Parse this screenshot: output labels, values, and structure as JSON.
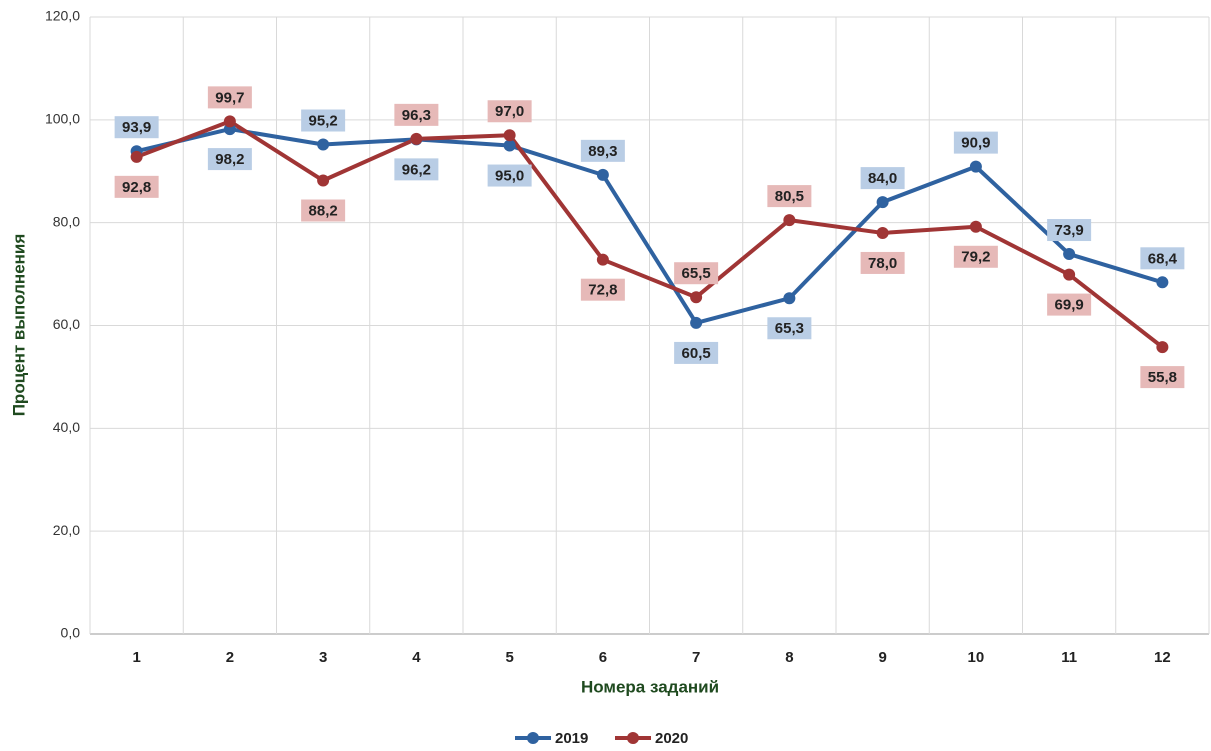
{
  "chart_data": {
    "type": "line",
    "x_label": "Номера заданий",
    "y_label": "Процент выполнения",
    "categories": [
      "1",
      "2",
      "3",
      "4",
      "5",
      "6",
      "7",
      "8",
      "9",
      "10",
      "11",
      "12"
    ],
    "series": [
      {
        "name": "2019",
        "color": "#2f62a0",
        "label_color": "#b9cde5",
        "values": [
          93.9,
          98.2,
          95.2,
          96.2,
          95.0,
          89.3,
          60.5,
          65.3,
          84.0,
          90.9,
          73.9,
          68.4
        ],
        "value_labels": [
          "93,9",
          "98,2",
          "95,2",
          "96,2",
          "95,0",
          "89,3",
          "60,5",
          "65,3",
          "84,0",
          "90,9",
          "73,9",
          "68,4"
        ]
      },
      {
        "name": "2020",
        "color": "#a03535",
        "label_color": "#e6b9b8",
        "values": [
          92.8,
          99.7,
          88.2,
          96.3,
          97.0,
          72.8,
          65.5,
          80.5,
          78.0,
          79.2,
          69.9,
          55.8
        ],
        "value_labels": [
          "92,8",
          "99,7",
          "88,2",
          "96,3",
          "97,0",
          "72,8",
          "65,5",
          "80,5",
          "78,0",
          "79,2",
          "69,9",
          "55,8"
        ]
      }
    ],
    "ylim": [
      0,
      120
    ],
    "yticks": [
      {
        "value": 0,
        "label": "0,0"
      },
      {
        "value": 20,
        "label": "20,0"
      },
      {
        "value": 40,
        "label": "40,0"
      },
      {
        "value": 60,
        "label": "60,0"
      },
      {
        "value": 80,
        "label": "80,0"
      },
      {
        "value": 100,
        "label": "100,0"
      },
      {
        "value": 120,
        "label": "120,0"
      }
    ],
    "grid": true,
    "legend": "bottom"
  }
}
